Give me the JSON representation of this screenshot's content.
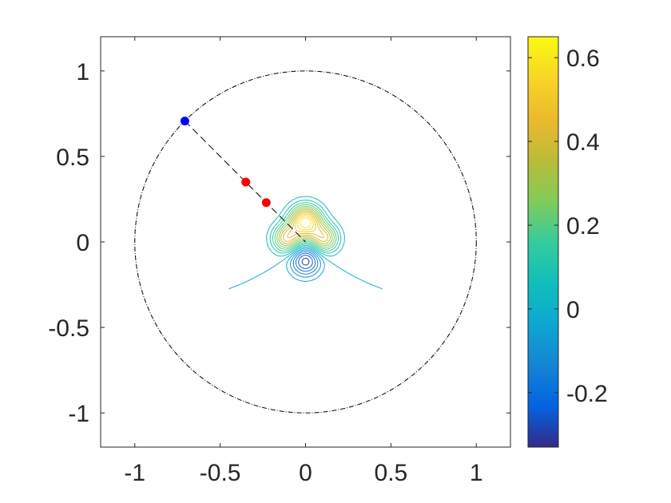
{
  "chart_data": {
    "type": "contour",
    "title": "",
    "xlabel": "",
    "ylabel": "",
    "xlim": [
      -1.2,
      1.2
    ],
    "ylim": [
      -1.2,
      1.2
    ],
    "x_ticks": [
      "-1",
      "-0.5",
      "0",
      "0.5",
      "1"
    ],
    "y_ticks": [
      "1",
      "0.5",
      "0",
      "-0.5",
      "-1"
    ],
    "x_tick_values": [
      -1,
      -0.5,
      0,
      0.5,
      1
    ],
    "y_tick_values": [
      1,
      0.5,
      0,
      -0.5,
      -1
    ],
    "colormap": "parula",
    "colorbar": {
      "range": [
        -0.33,
        0.65
      ],
      "ticks": [
        "0.6",
        "0.4",
        "0.2",
        "0",
        "-0.2"
      ],
      "tick_values": [
        0.6,
        0.4,
        0.2,
        0,
        -0.2
      ]
    },
    "unit_circle": {
      "center": [
        0,
        0
      ],
      "radius": 1,
      "style": "dash-dot",
      "color": "#000000"
    },
    "ray": {
      "from": [
        -0.707,
        0.707
      ],
      "to": [
        0,
        0
      ],
      "style": "dashed",
      "color": "#000000"
    },
    "points": [
      {
        "x": -0.707,
        "y": 0.707,
        "color": "#0000ff"
      },
      {
        "x": -0.35,
        "y": 0.35,
        "color": "#ff0000"
      },
      {
        "x": -0.23,
        "y": 0.23,
        "color": "#ff0000"
      }
    ],
    "contour_field": {
      "peaks": [
        {
          "x": 0.0,
          "y": 0.12,
          "amplitude": 0.62,
          "width": 0.065
        },
        {
          "x": -0.11,
          "y": 0.02,
          "amplitude": 0.4,
          "width": 0.058
        },
        {
          "x": 0.11,
          "y": 0.02,
          "amplitude": 0.4,
          "width": 0.058
        },
        {
          "x": 0.0,
          "y": -0.11,
          "amplitude": -0.33,
          "width": 0.062
        }
      ],
      "levels": [
        -0.3,
        -0.25,
        -0.2,
        -0.15,
        -0.1,
        -0.05,
        0.0,
        0.05,
        0.1,
        0.15,
        0.2,
        0.25,
        0.3,
        0.35,
        0.4,
        0.45,
        0.5,
        0.55,
        0.6
      ]
    }
  }
}
